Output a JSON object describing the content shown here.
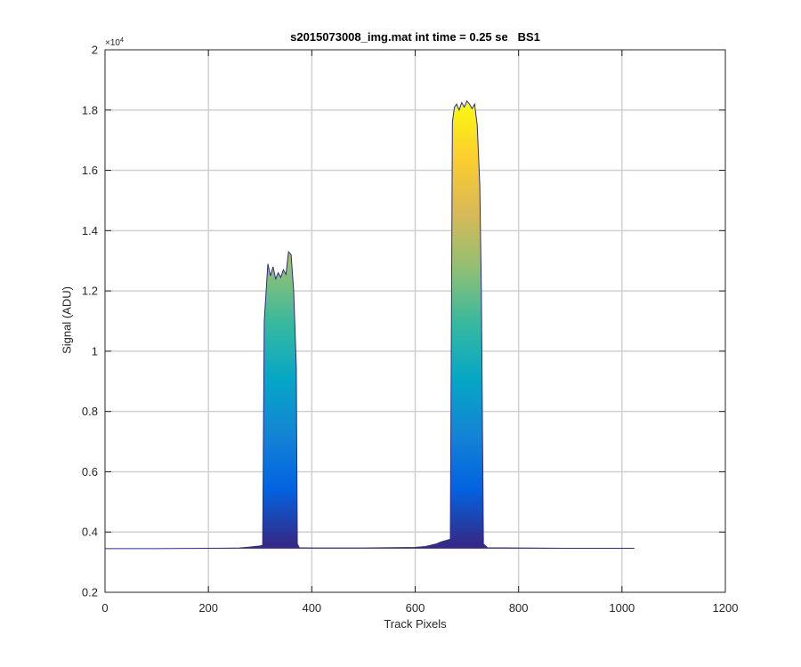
{
  "chart_data": {
    "type": "area",
    "title": "s2015073008_img.mat int time = 0.25 se   BS1",
    "xlabel": "Track Pixels",
    "ylabel": "Signal (ADU)",
    "y_exponent_label": "×10",
    "y_exponent_power": "4",
    "xlim": [
      0,
      1200
    ],
    "ylim": [
      2000,
      20000
    ],
    "x_ticks": [
      0,
      200,
      400,
      600,
      800,
      1000,
      1200
    ],
    "y_ticks": [
      2000,
      4000,
      6000,
      8000,
      10000,
      12000,
      14000,
      16000,
      18000,
      20000
    ],
    "x_tick_labels": [
      "0",
      "200",
      "400",
      "600",
      "800",
      "1000",
      "1200"
    ],
    "y_tick_labels": [
      "0.2",
      "0.4",
      "0.6",
      "0.8",
      "1",
      "1.2",
      "1.4",
      "1.6",
      "1.8",
      "2"
    ],
    "grid": true,
    "colormap": "parula",
    "colormap_stops": [
      "#352a87",
      "#0363e1",
      "#1485d4",
      "#06a7c6",
      "#38b99e",
      "#92bf73",
      "#d9ba56",
      "#fcce2e",
      "#f9fb0e"
    ],
    "baseline_color": "#2c2a8a",
    "series": [
      {
        "x": [
          0,
          100,
          200,
          260,
          280,
          300,
          305,
          308,
          315,
          320,
          325,
          330,
          335,
          340,
          345,
          350,
          355,
          360,
          365,
          370,
          372,
          376,
          400,
          500,
          600,
          620,
          640,
          650,
          660,
          668,
          672,
          676,
          680,
          685,
          690,
          695,
          700,
          705,
          710,
          715,
          720,
          725,
          728,
          732,
          740,
          800,
          900,
          1000,
          1024
        ],
        "y": [
          3450,
          3450,
          3460,
          3470,
          3500,
          3540,
          3560,
          11000,
          12900,
          12500,
          12800,
          12400,
          12600,
          12450,
          12700,
          12550,
          13300,
          13200,
          12000,
          9500,
          3600,
          3480,
          3470,
          3470,
          3490,
          3520,
          3600,
          3670,
          3720,
          3760,
          17600,
          18100,
          18200,
          18000,
          18250,
          18100,
          18300,
          18200,
          18050,
          18200,
          17500,
          15500,
          12000,
          3600,
          3480,
          3470,
          3460,
          3460,
          3460
        ]
      }
    ]
  }
}
